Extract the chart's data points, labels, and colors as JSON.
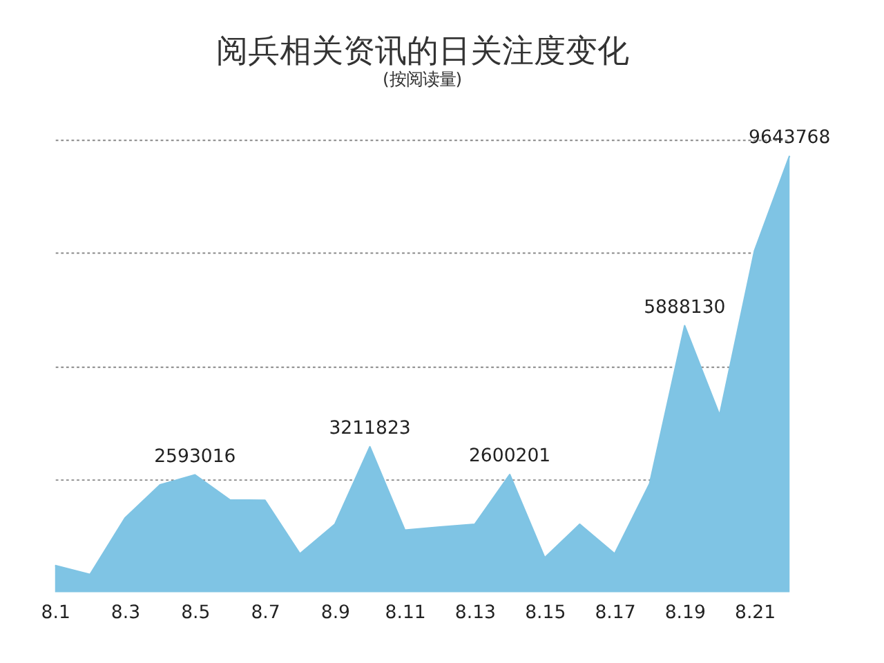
{
  "chart_data": {
    "type": "area",
    "title": "阅兵相关资讯的日关注度变化",
    "subtitle": "(按阅读量)",
    "categories": [
      "8.1",
      null,
      "8.3",
      null,
      "8.5",
      null,
      "8.7",
      null,
      "8.9",
      null,
      "8.11",
      null,
      "8.13",
      null,
      "8.15",
      null,
      "8.17",
      null,
      "8.19",
      null,
      "8.21",
      null
    ],
    "series": [
      {
        "color": "#7fc4e4",
        "values": [
          590000,
          390000,
          1640000,
          2370000,
          2593016,
          2040000,
          2030000,
          850000,
          1500000,
          3211823,
          1370000,
          1440000,
          1500000,
          2600201,
          760000,
          1500000,
          850000,
          2400000,
          5888130,
          3910000,
          7550000,
          9643768
        ],
        "value_labels": [
          null,
          null,
          null,
          null,
          "2593016",
          null,
          null,
          null,
          null,
          "3211823",
          null,
          null,
          null,
          "2600201",
          null,
          null,
          null,
          null,
          "5888130",
          null,
          null,
          "9643768"
        ]
      }
    ],
    "ylim": [
      0,
      10000000
    ],
    "yticks": [
      {
        "value": 2500000,
        "label": null
      },
      {
        "value": 5000000,
        "label": null
      },
      {
        "value": 7500000,
        "label": null
      },
      {
        "value": 10000000,
        "label": null
      }
    ],
    "grid": "y",
    "tick_labels": "x"
  }
}
